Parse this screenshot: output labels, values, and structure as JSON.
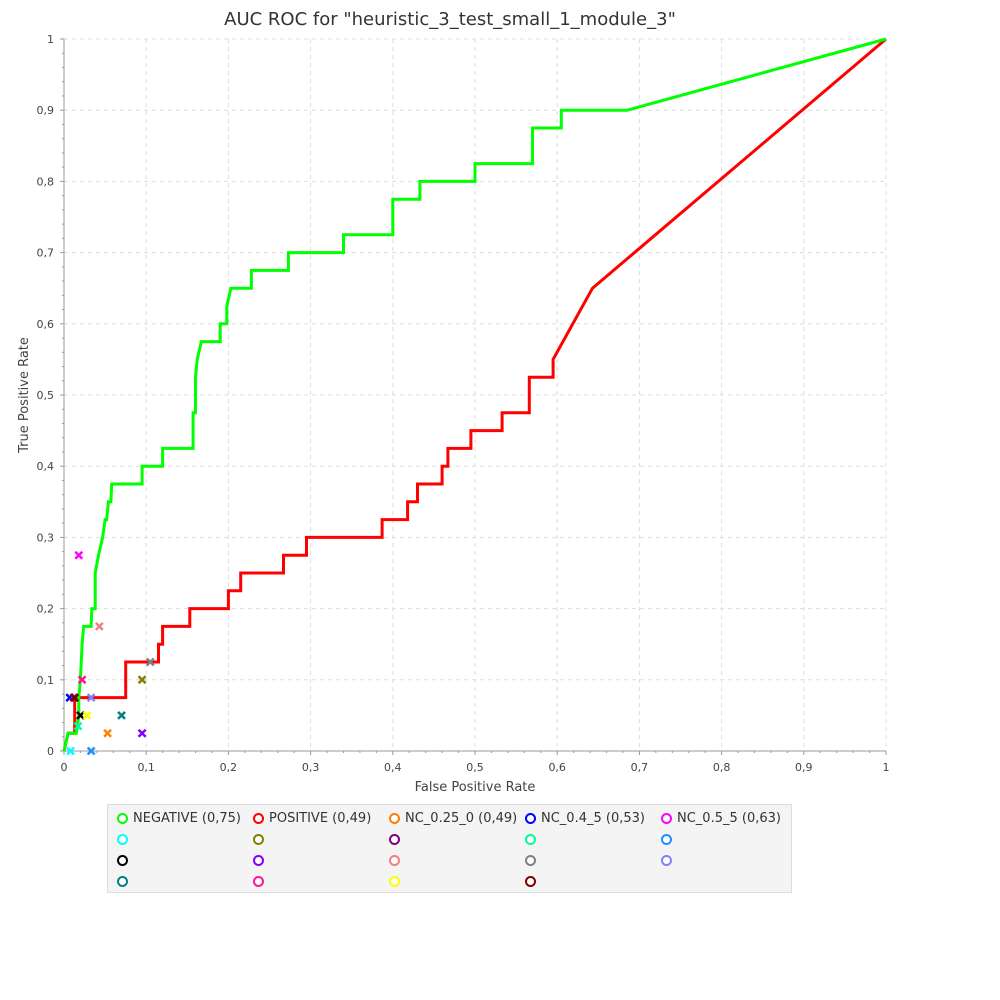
{
  "chart_data": {
    "type": "line",
    "title": "AUC ROC for \"heuristic_3_test_small_1_module_3\"",
    "xlabel": "False Positive Rate",
    "ylabel": "True Positive Rate",
    "xlim": [
      0,
      1
    ],
    "ylim": [
      0,
      1
    ],
    "x_ticks": [
      "0",
      "0,1",
      "0,2",
      "0,3",
      "0,4",
      "0,5",
      "0,6",
      "0,7",
      "0,8",
      "0,9",
      "1"
    ],
    "y_ticks": [
      "0",
      "0,1",
      "0,2",
      "0,3",
      "0,4",
      "0,5",
      "0,6",
      "0,7",
      "0,8",
      "0,9",
      "1"
    ],
    "grid": true,
    "legend_position": "bottom",
    "series": [
      {
        "name": "NEGATIVE (0,75)",
        "color": "#00ff00",
        "points": [
          [
            0,
            0
          ],
          [
            0.005,
            0.025
          ],
          [
            0.015,
            0.025
          ],
          [
            0.018,
            0.05
          ],
          [
            0.018,
            0.075
          ],
          [
            0.02,
            0.1
          ],
          [
            0.022,
            0.15
          ],
          [
            0.024,
            0.175
          ],
          [
            0.033,
            0.175
          ],
          [
            0.034,
            0.2
          ],
          [
            0.038,
            0.2
          ],
          [
            0.038,
            0.25
          ],
          [
            0.042,
            0.275
          ],
          [
            0.047,
            0.3
          ],
          [
            0.05,
            0.325
          ],
          [
            0.052,
            0.325
          ],
          [
            0.054,
            0.35
          ],
          [
            0.057,
            0.35
          ],
          [
            0.058,
            0.375
          ],
          [
            0.095,
            0.375
          ],
          [
            0.095,
            0.4
          ],
          [
            0.12,
            0.4
          ],
          [
            0.12,
            0.425
          ],
          [
            0.157,
            0.425
          ],
          [
            0.157,
            0.475
          ],
          [
            0.16,
            0.475
          ],
          [
            0.16,
            0.525
          ],
          [
            0.162,
            0.55
          ],
          [
            0.167,
            0.575
          ],
          [
            0.19,
            0.575
          ],
          [
            0.19,
            0.6
          ],
          [
            0.198,
            0.6
          ],
          [
            0.198,
            0.625
          ],
          [
            0.203,
            0.65
          ],
          [
            0.228,
            0.65
          ],
          [
            0.228,
            0.675
          ],
          [
            0.273,
            0.675
          ],
          [
            0.273,
            0.7
          ],
          [
            0.34,
            0.7
          ],
          [
            0.34,
            0.725
          ],
          [
            0.4,
            0.725
          ],
          [
            0.4,
            0.775
          ],
          [
            0.433,
            0.775
          ],
          [
            0.433,
            0.8
          ],
          [
            0.5,
            0.8
          ],
          [
            0.5,
            0.825
          ],
          [
            0.57,
            0.825
          ],
          [
            0.57,
            0.875
          ],
          [
            0.605,
            0.875
          ],
          [
            0.605,
            0.9
          ],
          [
            0.685,
            0.9
          ],
          [
            1,
            1
          ]
        ]
      },
      {
        "name": "POSITIVE (0,49)",
        "color": "#ff0000",
        "points": [
          [
            0,
            0
          ],
          [
            0.005,
            0.025
          ],
          [
            0.013,
            0.025
          ],
          [
            0.013,
            0.075
          ],
          [
            0.075,
            0.075
          ],
          [
            0.075,
            0.125
          ],
          [
            0.115,
            0.125
          ],
          [
            0.115,
            0.15
          ],
          [
            0.12,
            0.15
          ],
          [
            0.12,
            0.175
          ],
          [
            0.153,
            0.175
          ],
          [
            0.153,
            0.2
          ],
          [
            0.2,
            0.2
          ],
          [
            0.2,
            0.225
          ],
          [
            0.215,
            0.225
          ],
          [
            0.215,
            0.25
          ],
          [
            0.267,
            0.25
          ],
          [
            0.267,
            0.275
          ],
          [
            0.295,
            0.275
          ],
          [
            0.295,
            0.3
          ],
          [
            0.387,
            0.3
          ],
          [
            0.387,
            0.325
          ],
          [
            0.418,
            0.325
          ],
          [
            0.418,
            0.35
          ],
          [
            0.43,
            0.35
          ],
          [
            0.43,
            0.375
          ],
          [
            0.46,
            0.375
          ],
          [
            0.46,
            0.4
          ],
          [
            0.467,
            0.4
          ],
          [
            0.467,
            0.425
          ],
          [
            0.495,
            0.425
          ],
          [
            0.495,
            0.45
          ],
          [
            0.533,
            0.45
          ],
          [
            0.533,
            0.475
          ],
          [
            0.566,
            0.475
          ],
          [
            0.566,
            0.525
          ],
          [
            0.595,
            0.525
          ],
          [
            0.595,
            0.55
          ],
          [
            0.643,
            0.65
          ],
          [
            1,
            1
          ]
        ]
      }
    ],
    "markers": [
      {
        "name": "NC_0.25_0 (0,49)",
        "color": "#ff8000",
        "x": 0.053,
        "y": 0.025
      },
      {
        "name": "NC_0.4_5 (0,53)",
        "color": "#0000ff",
        "x": 0.007,
        "y": 0.075
      },
      {
        "name": "NC_0.5_5 (0,63)",
        "color": "#ff00ff",
        "x": 0.018,
        "y": 0.275
      },
      {
        "name": "",
        "color": "#00ffff",
        "x": 0.008,
        "y": 0.0
      },
      {
        "name": "",
        "color": "#808000",
        "x": 0.095,
        "y": 0.1
      },
      {
        "name": "",
        "color": "#800080",
        "x": 0.012,
        "y": 0.075
      },
      {
        "name": "",
        "color": "#00ff99",
        "x": 0.017,
        "y": 0.035
      },
      {
        "name": "",
        "color": "#1e90ff",
        "x": 0.033,
        "y": 0.0
      },
      {
        "name": "",
        "color": "#000000",
        "x": 0.02,
        "y": 0.05
      },
      {
        "name": "",
        "color": "#8000ff",
        "x": 0.095,
        "y": 0.025
      },
      {
        "name": "",
        "color": "#f08080",
        "x": 0.043,
        "y": 0.175
      },
      {
        "name": "",
        "color": "#808080",
        "x": 0.105,
        "y": 0.125
      },
      {
        "name": "",
        "color": "#8080ff",
        "x": 0.033,
        "y": 0.075
      },
      {
        "name": "",
        "color": "#008080",
        "x": 0.07,
        "y": 0.05
      },
      {
        "name": "",
        "color": "#ff1493",
        "x": 0.022,
        "y": 0.1
      },
      {
        "name": "",
        "color": "#ffff00",
        "x": 0.028,
        "y": 0.05
      },
      {
        "name": "",
        "color": "#800000",
        "x": 0.013,
        "y": 0.075
      }
    ]
  },
  "legend": [
    {
      "label": "NEGATIVE (0,75)",
      "color": "#00ff00"
    },
    {
      "label": "POSITIVE (0,49)",
      "color": "#ff0000"
    },
    {
      "label": "NC_0.25_0 (0,49)",
      "color": "#ff8000"
    },
    {
      "label": "NC_0.4_5 (0,53)",
      "color": "#0000ff"
    },
    {
      "label": "NC_0.5_5 (0,63)",
      "color": "#ff00ff"
    },
    {
      "label": "",
      "color": "#00ffff"
    },
    {
      "label": "",
      "color": "#808000"
    },
    {
      "label": "",
      "color": "#800080"
    },
    {
      "label": "",
      "color": "#00ff99"
    },
    {
      "label": "",
      "color": "#1e90ff"
    },
    {
      "label": "",
      "color": "#000000"
    },
    {
      "label": "",
      "color": "#8000ff"
    },
    {
      "label": "",
      "color": "#f08080"
    },
    {
      "label": "",
      "color": "#808080"
    },
    {
      "label": "",
      "color": "#8080ff"
    },
    {
      "label": "",
      "color": "#008080"
    },
    {
      "label": "",
      "color": "#ff1493"
    },
    {
      "label": "",
      "color": "#ffff00"
    },
    {
      "label": "",
      "color": "#800000"
    }
  ]
}
